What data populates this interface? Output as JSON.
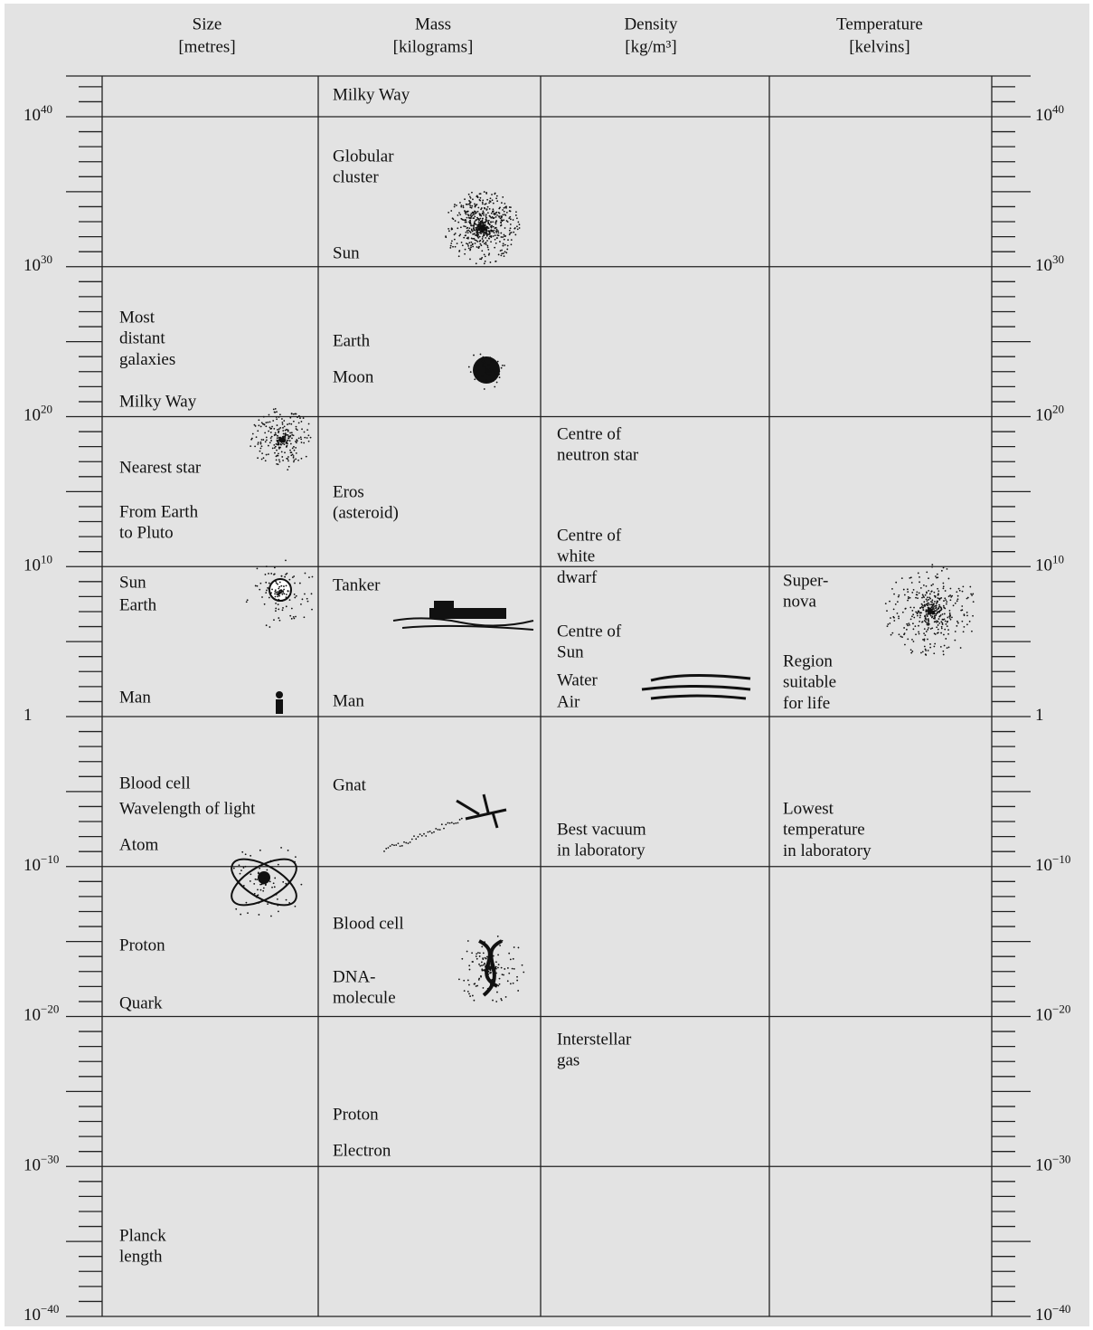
{
  "columns": [
    {
      "name": "Size",
      "unit": "[metres]",
      "items": [
        [
          "Most",
          "distant",
          "galaxies"
        ],
        [
          "Milky Way"
        ],
        [
          "Nearest star"
        ],
        [
          "From Earth",
          "to Pluto"
        ],
        [
          "Sun"
        ],
        [
          "Earth"
        ],
        [
          "Man"
        ],
        [
          "Blood cell"
        ],
        [
          "Wavelength of light"
        ],
        [
          "Atom"
        ],
        [
          "Proton"
        ],
        [
          "Quark"
        ],
        [
          "Planck",
          "length"
        ]
      ]
    },
    {
      "name": "Mass",
      "unit": "[kilograms]",
      "items": [
        [
          "Milky Way"
        ],
        [
          "Globular",
          "cluster"
        ],
        [
          "Sun"
        ],
        [
          "Earth"
        ],
        [
          "Moon"
        ],
        [
          "Eros",
          "(asteroid)"
        ],
        [
          "Tanker"
        ],
        [
          "Man"
        ],
        [
          "Gnat"
        ],
        [
          "Blood cell"
        ],
        [
          "DNA-",
          "molecule"
        ],
        [
          "Proton"
        ],
        [
          "Electron"
        ]
      ]
    },
    {
      "name": "Density",
      "unit": "[kg/m³]",
      "items": [
        [
          "Centre of",
          "neutron star"
        ],
        [
          "Centre of",
          "white",
          "dwarf"
        ],
        [
          "Centre of",
          "Sun"
        ],
        [
          "Water"
        ],
        [
          "Air"
        ],
        [
          "Best vacuum",
          "in laboratory"
        ],
        [
          "Interstellar",
          "gas"
        ]
      ]
    },
    {
      "name": "Temperature",
      "unit": "[kelvins]",
      "items": [
        [
          "Super-",
          "nova"
        ],
        [
          "Region",
          "suitable",
          "for life"
        ],
        [
          "Lowest",
          "temperature",
          "in laboratory"
        ]
      ]
    }
  ],
  "scale": {
    "ticks": [
      {
        "value": 40,
        "base": "10",
        "exponent": "40"
      },
      {
        "value": 30,
        "base": "10",
        "exponent": "30"
      },
      {
        "value": 20,
        "base": "10",
        "exponent": "20"
      },
      {
        "value": 10,
        "base": "10",
        "exponent": "10"
      },
      {
        "value": 0,
        "base": "1"
      },
      {
        "value": -10,
        "base": "10",
        "exponent": "−10"
      },
      {
        "value": -20,
        "base": "10",
        "exponent": "−20"
      },
      {
        "value": -30,
        "base": "10",
        "exponent": "−30"
      },
      {
        "value": -40,
        "base": "10",
        "exponent": "−40"
      }
    ]
  }
}
